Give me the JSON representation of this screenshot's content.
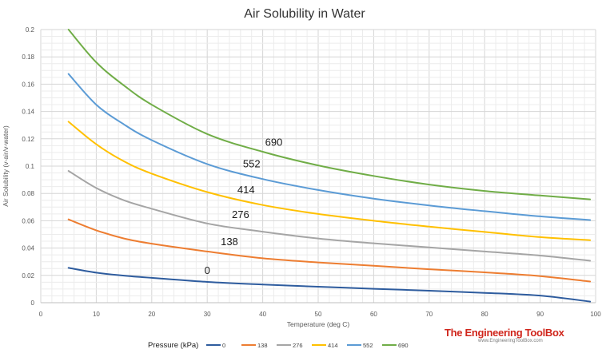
{
  "chart_data": {
    "type": "line",
    "title": "Air Solubility in Water",
    "xlabel": "Temperature  (deg C)",
    "ylabel": "Air Solubility  (v-air/v-water)",
    "xlim": [
      0,
      100
    ],
    "ylim": [
      0,
      0.2
    ],
    "x_ticks": [
      "0",
      "10",
      "20",
      "30",
      "40",
      "50",
      "60",
      "70",
      "80",
      "90",
      "100"
    ],
    "y_ticks": [
      "0",
      "0.02",
      "0.04",
      "0.06",
      "0.08",
      "0.1",
      "0.12",
      "0.14",
      "0.16",
      "0.18",
      "0.2"
    ],
    "grid": true,
    "legend_title": "Pressure (kPa)",
    "legend_position": "bottom",
    "series": [
      {
        "name": "0",
        "color": "#2E5C9E",
        "label": "0",
        "label_at": [
          30,
          0.021
        ],
        "x": [
          5,
          10,
          15,
          20,
          30,
          40,
          50,
          60,
          70,
          80,
          90,
          99
        ],
        "y": [
          0.0255,
          0.022,
          0.0198,
          0.0182,
          0.0152,
          0.0133,
          0.0117,
          0.0102,
          0.0088,
          0.0072,
          0.0052,
          0.0008
        ]
      },
      {
        "name": "138",
        "color": "#ED7D31",
        "label": "138",
        "label_at": [
          34,
          0.042
        ],
        "x": [
          5,
          10,
          15,
          20,
          30,
          40,
          50,
          60,
          70,
          80,
          90,
          99
        ],
        "y": [
          0.061,
          0.053,
          0.047,
          0.0432,
          0.0375,
          0.0325,
          0.0295,
          0.027,
          0.0245,
          0.0222,
          0.0195,
          0.0155
        ]
      },
      {
        "name": "276",
        "color": "#A5A5A5",
        "label": "276",
        "label_at": [
          36,
          0.062
        ],
        "x": [
          5,
          10,
          15,
          20,
          30,
          40,
          50,
          60,
          70,
          80,
          90,
          99
        ],
        "y": [
          0.0965,
          0.084,
          0.075,
          0.0688,
          0.058,
          0.052,
          0.047,
          0.0435,
          0.0405,
          0.0375,
          0.0345,
          0.0307
        ]
      },
      {
        "name": "414",
        "color": "#FFC000",
        "label": "414",
        "label_at": [
          37,
          0.08
        ],
        "x": [
          5,
          10,
          15,
          20,
          30,
          40,
          50,
          60,
          70,
          80,
          90,
          99
        ],
        "y": [
          0.1325,
          0.116,
          0.1035,
          0.0945,
          0.081,
          0.0715,
          0.065,
          0.06,
          0.0557,
          0.0518,
          0.048,
          0.0458
        ]
      },
      {
        "name": "552",
        "color": "#5B9BD5",
        "label": "552",
        "label_at": [
          38,
          0.099
        ],
        "x": [
          5,
          10,
          15,
          20,
          30,
          40,
          50,
          60,
          70,
          80,
          90,
          99
        ],
        "y": [
          0.1675,
          0.145,
          0.1305,
          0.119,
          0.1015,
          0.0905,
          0.0825,
          0.0762,
          0.0712,
          0.067,
          0.0632,
          0.0605
        ]
      },
      {
        "name": "690",
        "color": "#70AD47",
        "label": "690",
        "label_at": [
          42,
          0.115
        ],
        "x": [
          5,
          10,
          15,
          20,
          30,
          40,
          50,
          60,
          70,
          80,
          90,
          99
        ],
        "y": [
          0.2,
          0.176,
          0.159,
          0.145,
          0.1235,
          0.1105,
          0.1005,
          0.0928,
          0.0865,
          0.0818,
          0.0785,
          0.0757
        ]
      }
    ]
  },
  "branding": {
    "title": "The Engineering ToolBox",
    "url": "www.EngineeringToolBox.com"
  }
}
